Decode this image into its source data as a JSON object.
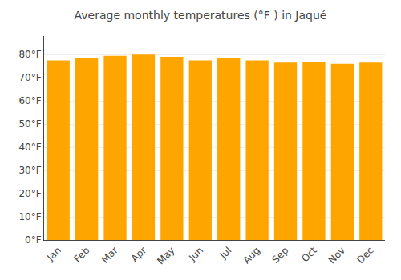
{
  "chart_data": {
    "type": "bar",
    "title": "Average monthly temperatures (°F ) in Jaqué",
    "categories": [
      "Jan",
      "Feb",
      "Mar",
      "Apr",
      "May",
      "Jun",
      "Jul",
      "Aug",
      "Sep",
      "Oct",
      "Nov",
      "Dec"
    ],
    "values": [
      77.5,
      78.5,
      79.5,
      80.0,
      79.0,
      77.5,
      78.5,
      77.5,
      76.5,
      77.0,
      76.0,
      76.5
    ],
    "color": "#FFA500",
    "ylim": [
      0,
      88
    ],
    "yticks": [
      {
        "value": 0,
        "label": "0°F"
      },
      {
        "value": 10,
        "label": "10°F"
      },
      {
        "value": 20,
        "label": "20°F"
      },
      {
        "value": 30,
        "label": "30°F"
      },
      {
        "value": 40,
        "label": "40°F"
      },
      {
        "value": 50,
        "label": "50°F"
      },
      {
        "value": 60,
        "label": "60°F"
      },
      {
        "value": 70,
        "label": "70°F"
      },
      {
        "value": 80,
        "label": "80°F"
      }
    ],
    "grid": true
  }
}
